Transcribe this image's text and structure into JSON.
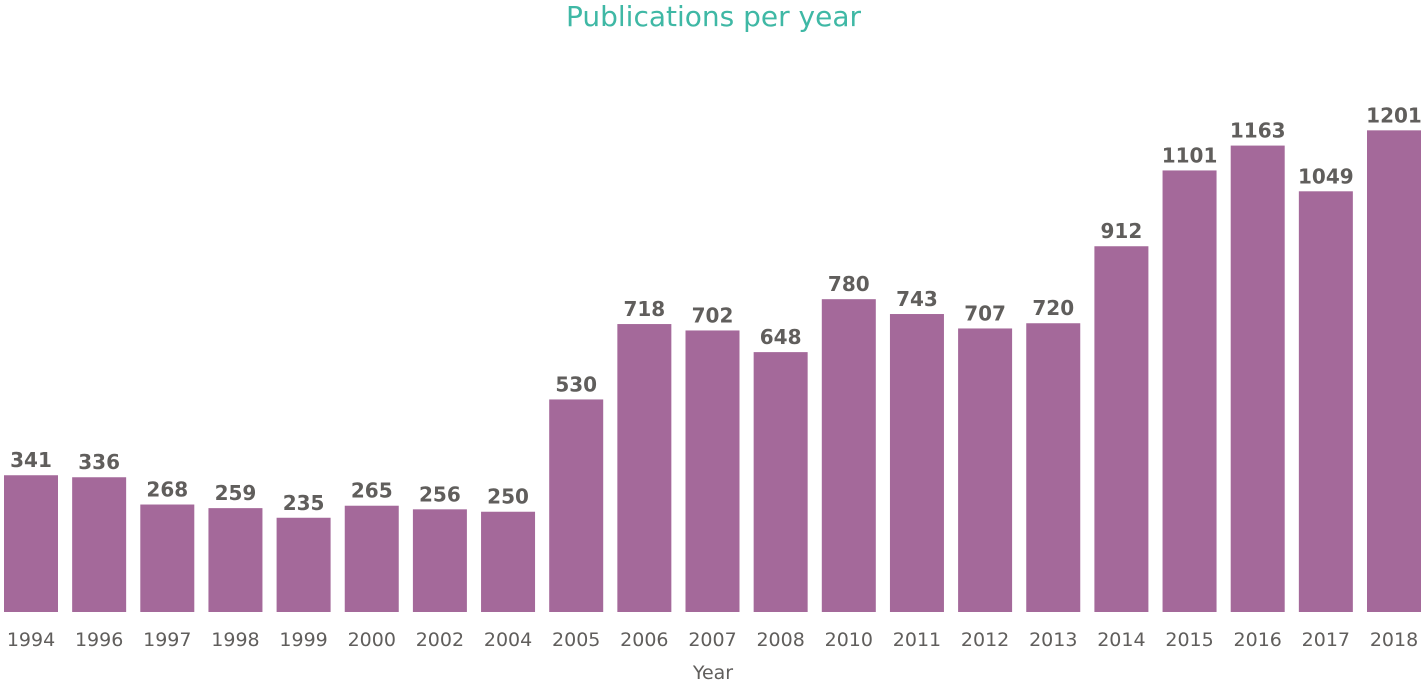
{
  "chart_data": {
    "type": "bar",
    "title": "Publications per year",
    "xlabel": "Year",
    "ylabel": "",
    "categories": [
      "1994",
      "1996",
      "1997",
      "1998",
      "1999",
      "2000",
      "2002",
      "2004",
      "2005",
      "2006",
      "2007",
      "2008",
      "2010",
      "2011",
      "2012",
      "2013",
      "2014",
      "2015",
      "2016",
      "2017",
      "2018"
    ],
    "values": [
      341,
      336,
      268,
      259,
      235,
      265,
      256,
      250,
      530,
      718,
      702,
      648,
      780,
      743,
      707,
      720,
      912,
      1101,
      1163,
      1049,
      1201
    ],
    "ylim": [
      0,
      1526
    ],
    "grid": false,
    "data_labels": true,
    "colors": {
      "bar": "#a4699a",
      "title": "#3fb8a5",
      "text": "#605e5c"
    }
  }
}
